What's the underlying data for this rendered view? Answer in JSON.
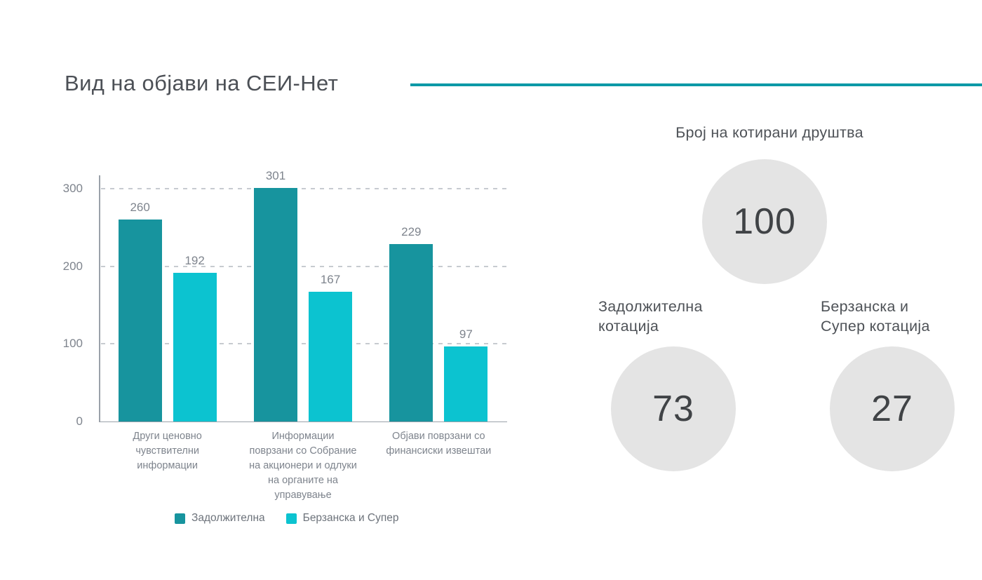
{
  "header": {
    "title": "Вид на објави на СЕИ-Нет"
  },
  "colors": {
    "title_text": "#4c5056",
    "title_rule": "#0c99a7",
    "series_mandatory": "#17949e",
    "series_exchange_super": "#0cc3d0",
    "circle_fill": "#e4e4e4",
    "circle_number_text": "#404346",
    "heading_text": "#4e5257",
    "chart_text": "#7e848d",
    "axis_line": "#9aa1a9",
    "gridline": "#c7cbd0"
  },
  "chart_data": {
    "type": "bar",
    "title": "Вид на објави на СЕИ-Нет",
    "categories": [
      "Други ценовно\nчувствителни\nинформации",
      "Информации\nповрзани со Собрание\nна акционери и одлуки\nна органите на\nуправување",
      "Објави поврзани со\nфинансиски извештаи"
    ],
    "series": [
      {
        "name": "Задолжителна",
        "color": "#17949e",
        "values": [
          260,
          301,
          229
        ]
      },
      {
        "name": "Берзанска и Супер",
        "color": "#0cc3d0",
        "values": [
          192,
          167,
          97
        ]
      }
    ],
    "yticks": [
      0,
      100,
      200,
      300
    ],
    "ylim": [
      0,
      317
    ],
    "xlabel": "",
    "ylabel": "",
    "grid": "horizontal-dashed",
    "legend_position": "bottom",
    "value_labels": true
  },
  "panel": {
    "heading": "Број на котирани друштва",
    "total_circle": {
      "value": "100"
    },
    "stats": [
      {
        "label_line1": "Задолжителна",
        "label_line2": "котација",
        "value": "73"
      },
      {
        "label_line1": "Берзанска и",
        "label_line2": "Супер котација",
        "value": "27"
      }
    ]
  }
}
